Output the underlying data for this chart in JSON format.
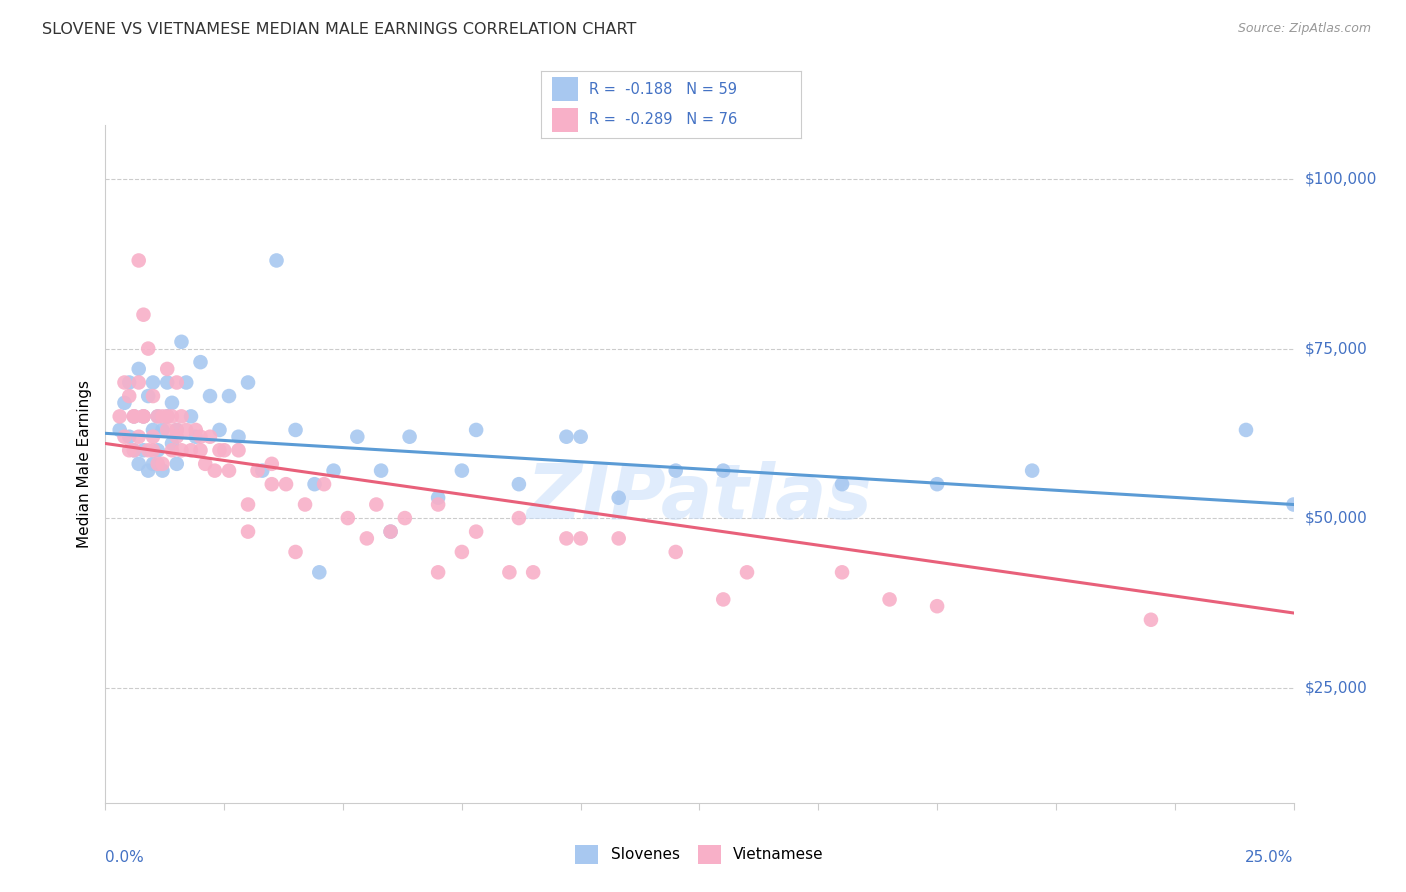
{
  "title": "SLOVENE VS VIETNAMESE MEDIAN MALE EARNINGS CORRELATION CHART",
  "source": "Source: ZipAtlas.com",
  "ylabel": "Median Male Earnings",
  "y_ticks": [
    25000,
    50000,
    75000,
    100000
  ],
  "y_tick_labels": [
    "$25,000",
    "$50,000",
    "$75,000",
    "$100,000"
  ],
  "x_min": 0.0,
  "x_max": 0.25,
  "y_min": 8000,
  "y_max": 108000,
  "blue_color": "#A8C8F0",
  "pink_color": "#F8B0C8",
  "blue_line_color": "#5B9BD5",
  "pink_line_color": "#E8607A",
  "axis_color": "#4472C4",
  "grid_color": "#CCCCCC",
  "background_color": "#FFFFFF",
  "watermark": "ZIPatlas",
  "blue_line_x0": 0.0,
  "blue_line_x1": 0.25,
  "blue_line_y0": 62500,
  "blue_line_y1": 52000,
  "pink_line_x0": 0.0,
  "pink_line_x1": 0.25,
  "pink_line_y0": 61000,
  "pink_line_y1": 36000,
  "blue_scatter_x": [
    0.003,
    0.004,
    0.005,
    0.005,
    0.006,
    0.006,
    0.007,
    0.007,
    0.008,
    0.008,
    0.009,
    0.009,
    0.01,
    0.01,
    0.01,
    0.011,
    0.011,
    0.012,
    0.012,
    0.013,
    0.013,
    0.014,
    0.014,
    0.015,
    0.015,
    0.016,
    0.017,
    0.018,
    0.019,
    0.02,
    0.022,
    0.024,
    0.026,
    0.028,
    0.03,
    0.033,
    0.036,
    0.04,
    0.044,
    0.048,
    0.053,
    0.058,
    0.064,
    0.07,
    0.078,
    0.087,
    0.097,
    0.108,
    0.12,
    0.1,
    0.075,
    0.06,
    0.045,
    0.13,
    0.155,
    0.175,
    0.195,
    0.24,
    0.25
  ],
  "blue_scatter_y": [
    63000,
    67000,
    62000,
    70000,
    65000,
    60000,
    72000,
    58000,
    65000,
    60000,
    68000,
    57000,
    63000,
    70000,
    58000,
    65000,
    60000,
    63000,
    57000,
    70000,
    65000,
    61000,
    67000,
    63000,
    58000,
    76000,
    70000,
    65000,
    62000,
    73000,
    68000,
    63000,
    68000,
    62000,
    70000,
    57000,
    88000,
    63000,
    55000,
    57000,
    62000,
    57000,
    62000,
    53000,
    63000,
    55000,
    62000,
    53000,
    57000,
    62000,
    57000,
    48000,
    42000,
    57000,
    55000,
    55000,
    57000,
    63000,
    52000
  ],
  "pink_scatter_x": [
    0.003,
    0.004,
    0.004,
    0.005,
    0.005,
    0.006,
    0.006,
    0.007,
    0.007,
    0.008,
    0.008,
    0.009,
    0.009,
    0.01,
    0.01,
    0.011,
    0.011,
    0.012,
    0.012,
    0.013,
    0.013,
    0.014,
    0.014,
    0.015,
    0.015,
    0.016,
    0.016,
    0.017,
    0.018,
    0.019,
    0.02,
    0.021,
    0.022,
    0.023,
    0.024,
    0.026,
    0.028,
    0.03,
    0.032,
    0.035,
    0.038,
    0.042,
    0.046,
    0.051,
    0.057,
    0.063,
    0.07,
    0.078,
    0.087,
    0.097,
    0.108,
    0.12,
    0.06,
    0.075,
    0.09,
    0.13,
    0.155,
    0.165,
    0.175,
    0.22,
    0.135,
    0.1,
    0.085,
    0.07,
    0.055,
    0.04,
    0.03,
    0.02,
    0.015,
    0.01,
    0.008,
    0.006,
    0.007,
    0.013,
    0.025,
    0.035
  ],
  "pink_scatter_y": [
    65000,
    62000,
    70000,
    60000,
    68000,
    65000,
    60000,
    88000,
    62000,
    80000,
    65000,
    75000,
    60000,
    68000,
    62000,
    65000,
    58000,
    65000,
    58000,
    72000,
    63000,
    65000,
    60000,
    70000,
    63000,
    65000,
    60000,
    63000,
    60000,
    63000,
    60000,
    58000,
    62000,
    57000,
    60000,
    57000,
    60000,
    52000,
    57000,
    58000,
    55000,
    52000,
    55000,
    50000,
    52000,
    50000,
    52000,
    48000,
    50000,
    47000,
    47000,
    45000,
    48000,
    45000,
    42000,
    38000,
    42000,
    38000,
    37000,
    35000,
    42000,
    47000,
    42000,
    42000,
    47000,
    45000,
    48000,
    62000,
    62000,
    60000,
    65000,
    65000,
    70000,
    65000,
    60000,
    55000
  ]
}
